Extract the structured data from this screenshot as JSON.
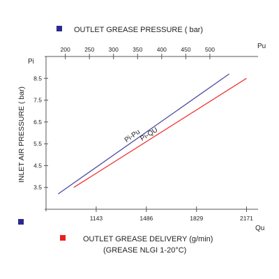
{
  "chart_data": {
    "type": "line",
    "top_axis_label": "OUTLET GREASE PRESSURE ( bar)",
    "top_axis_symbol": "Pu",
    "top_axis_ticks": [
      200,
      250,
      300,
      350,
      400,
      450,
      500
    ],
    "bottom_axis_label_line1": "OUTLET GREASE DELIVERY (g/min)",
    "bottom_axis_label_line2": "(GREASE NLGI 1-20°C)",
    "bottom_axis_symbol": "Qu",
    "bottom_axis_ticks": [
      1143,
      1486,
      1829,
      2171
    ],
    "y_axis_label": "INLET AIR PRESSURE ( bar)",
    "y_axis_symbol": "Pi",
    "y_axis_ticks": [
      3.5,
      4.5,
      5.5,
      6.5,
      7.5,
      8.5
    ],
    "ylim": [
      2.5,
      9.5
    ],
    "top_xlim": [
      160,
      600
    ],
    "bottom_xlim": [
      800,
      2250
    ],
    "series": [
      {
        "name": "Pi-Pu",
        "axis": "top",
        "color": "#4a4aa0",
        "x": [
          185,
          540
        ],
        "y": [
          3.2,
          8.7
        ]
      },
      {
        "name": "Pi-QU",
        "axis": "bottom",
        "color": "#f03030",
        "x": [
          990,
          2171
        ],
        "y": [
          3.5,
          8.5
        ]
      }
    ],
    "legend": [
      {
        "text": "OUTLET GREASE PRESSURE ( bar)",
        "color": "#2a2a8c"
      },
      {
        "text": "OUTLET GREASE DELIVERY (g/min)",
        "color": "#e82020"
      }
    ]
  }
}
